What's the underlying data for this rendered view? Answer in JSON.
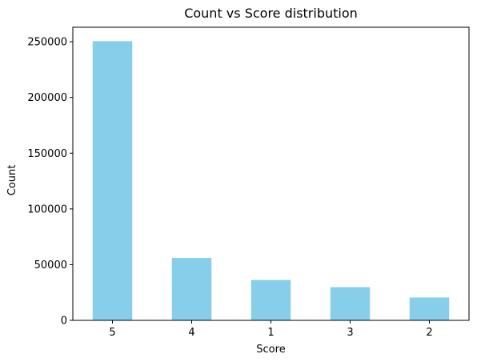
{
  "chart_data": {
    "type": "bar",
    "title": "Count vs Score distribution",
    "xlabel": "Score",
    "ylabel": "Count",
    "categories": [
      "5",
      "4",
      "1",
      "3",
      "2"
    ],
    "values": [
      250500,
      56000,
      36200,
      29800,
      20500
    ],
    "ylim": [
      0,
      263000
    ],
    "yticks": [
      0,
      50000,
      100000,
      150000,
      200000,
      250000
    ],
    "ytick_labels": [
      "0",
      "50000",
      "100000",
      "150000",
      "200000",
      "250000"
    ],
    "grid": false,
    "legend": "none",
    "colors": {
      "bar": "#87CEEB",
      "axis": "#000000",
      "background": "#ffffff"
    }
  }
}
